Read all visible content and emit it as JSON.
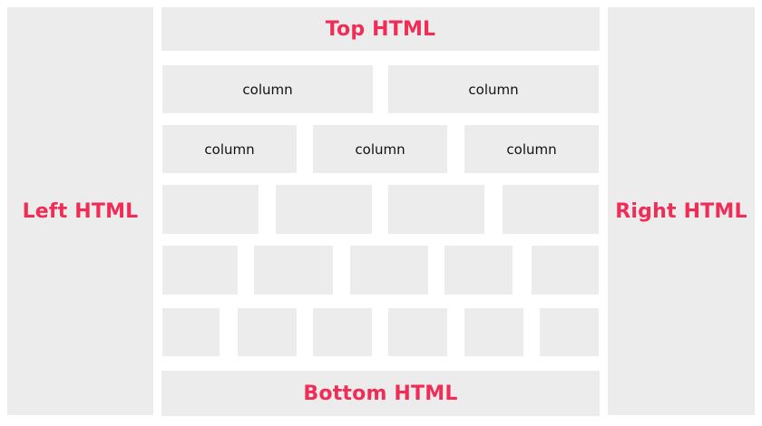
{
  "accent_color": "#ef2d57",
  "block_color": "#ececec",
  "regions": {
    "left": "Left HTML",
    "right": "Right HTML",
    "top": "Top HTML",
    "bottom": "Bottom HTML"
  },
  "rows": [
    {
      "columns": [
        "column",
        "column"
      ]
    },
    {
      "columns": [
        "column",
        "column",
        "column"
      ]
    },
    {
      "columns": [
        "",
        "",
        "",
        ""
      ]
    },
    {
      "columns": [
        "",
        "",
        "",
        "",
        ""
      ]
    },
    {
      "columns": [
        "",
        "",
        "",
        "",
        "",
        ""
      ]
    }
  ]
}
